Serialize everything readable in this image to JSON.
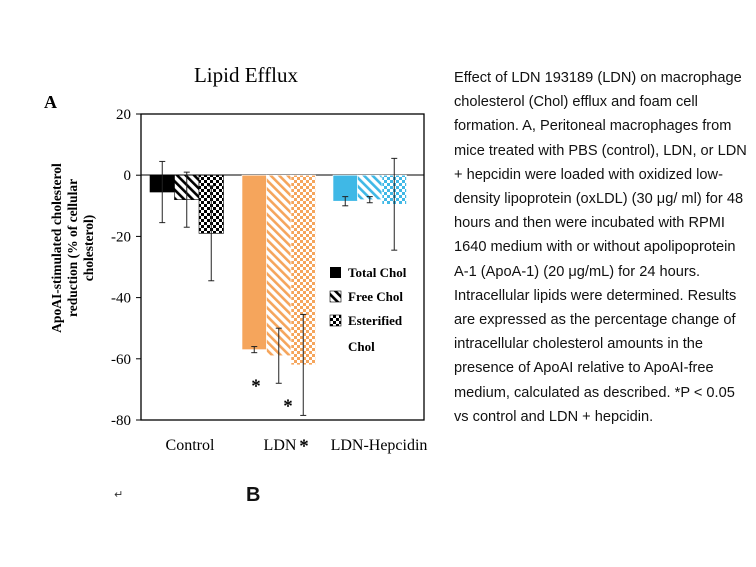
{
  "chart_data": {
    "type": "bar",
    "panel_label": "A",
    "title": "Lipid Efflux",
    "ylabel": "ApoAI-stimulated cholesterol reduction (% of cellular cholesterol)",
    "ylabel_lines": [
      "ApoAI-stimulated cholesterol",
      "reduction (% of cellular",
      "cholesterol)"
    ],
    "ylim": [
      -80,
      20
    ],
    "yticks": [
      20,
      0,
      -20,
      -40,
      -60,
      -80
    ],
    "categories": [
      "Control",
      "LDN",
      "LDN-Hepcidin"
    ],
    "series": [
      {
        "name": "Total Chol",
        "values": [
          -5.5,
          -57,
          -8.5
        ],
        "errors": [
          10,
          1,
          1.5
        ]
      },
      {
        "name": "Free Chol",
        "values": [
          -8,
          -59,
          -8
        ],
        "errors": [
          9,
          9,
          1
        ]
      },
      {
        "name": "Esterified Chol",
        "values": [
          -19,
          -62,
          -9.5
        ],
        "errors": [
          15.5,
          16.5,
          15
        ]
      }
    ],
    "legend": {
      "placement": "inside-right",
      "entries": [
        "Total Chol",
        "Free Chol",
        "Esterified",
        "Chol"
      ]
    },
    "significance": [
      "*",
      "*",
      "*"
    ],
    "colors": {
      "control": "#000000",
      "ldn": "#f5a55c",
      "hepcidin": "#3fb8e6"
    }
  },
  "figure": {
    "panel_b_label": "B",
    "return_mark": "↵"
  },
  "caption": "Effect of LDN 193189 (LDN) on macrophage cholesterol (Chol) efflux and foam cell formation. A, Peritoneal macrophages from mice treated with PBS (control), LDN, or LDN + hepcidin were loaded with oxidized low-density lipoprotein (oxLDL) (30 μg/ ml) for 48 hours and then were incubated with RPMI 1640 medium with or without apolipoprotein A-1 (ApoA-1) (20 μg/mL) for 24 hours. Intracellular lipids were determined. Results are expressed as the percentage change of intracellular cholesterol amounts in the presence of ApoAI relative to ApoAI-free medium, calculated as described. *P < 0.05 vs control and LDN + hepcidin."
}
